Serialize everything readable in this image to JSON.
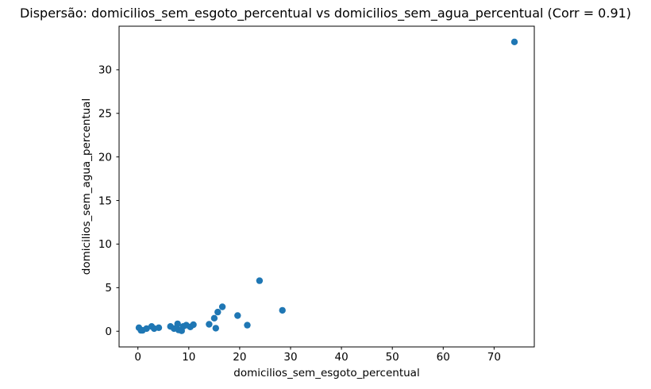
{
  "chart_data": {
    "type": "scatter",
    "title": "Dispersão: domicilios_sem_esgoto_percentual vs domicilios_sem_agua_percentual (Corr = 0.91)",
    "xlabel": "domicilios_sem_esgoto_percentual",
    "ylabel": "domicilios_sem_agua_percentual",
    "correlation": 0.91,
    "xlim": [
      -3.7,
      77.9
    ],
    "ylim": [
      -1.8,
      35.0
    ],
    "xticks": [
      0,
      10,
      20,
      30,
      40,
      50,
      60,
      70
    ],
    "yticks": [
      0,
      5,
      10,
      15,
      20,
      25,
      30
    ],
    "grid": false,
    "legend_visible": false,
    "marker_color": "#1f77b4",
    "axis_color": "#000000",
    "background_color": "#ffffff",
    "points": [
      [
        0.2,
        0.4
      ],
      [
        0.6,
        0.1
      ],
      [
        0.9,
        0.1
      ],
      [
        1.7,
        0.3
      ],
      [
        2.7,
        0.55
      ],
      [
        3.2,
        0.3
      ],
      [
        4.1,
        0.4
      ],
      [
        6.4,
        0.55
      ],
      [
        7.1,
        0.3
      ],
      [
        7.8,
        0.85
      ],
      [
        8.0,
        0.15
      ],
      [
        8.6,
        0.05
      ],
      [
        8.9,
        0.55
      ],
      [
        9.5,
        0.7
      ],
      [
        10.3,
        0.5
      ],
      [
        10.9,
        0.75
      ],
      [
        14.0,
        0.8
      ],
      [
        15.0,
        1.5
      ],
      [
        15.3,
        0.35
      ],
      [
        15.7,
        2.2
      ],
      [
        16.6,
        2.8
      ],
      [
        19.6,
        1.8
      ],
      [
        21.5,
        0.7
      ],
      [
        23.9,
        5.8
      ],
      [
        28.4,
        2.4
      ],
      [
        74.0,
        33.2
      ]
    ]
  }
}
